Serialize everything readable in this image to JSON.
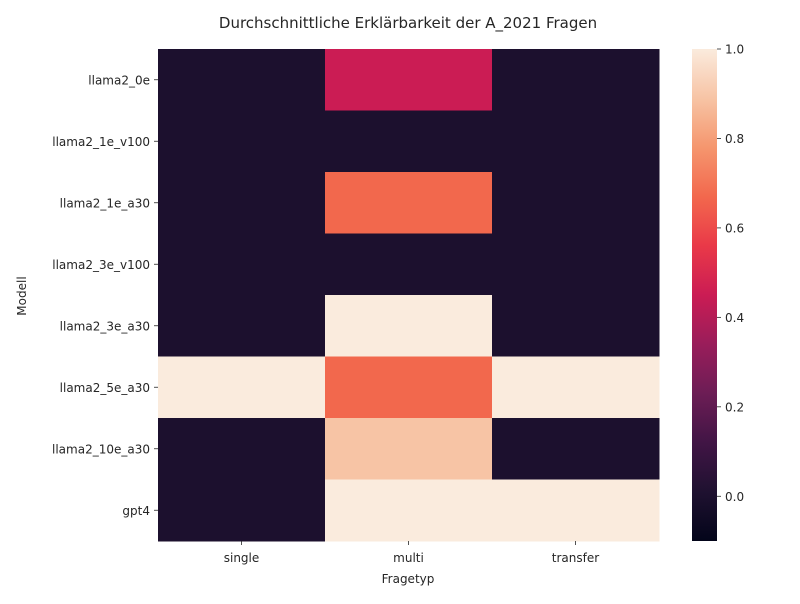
{
  "chart_data": {
    "type": "heatmap",
    "title": "Durchschnittliche Erklärbarkeit der A_2021 Fragen",
    "xlabel": "Fragetyp",
    "ylabel": "Modell",
    "x_categories": [
      "single",
      "multi",
      "transfer"
    ],
    "y_categories": [
      "llama2_0e",
      "llama2_1e_v100",
      "llama2_1e_a30",
      "llama2_3e_v100",
      "llama2_3e_a30",
      "llama2_5e_a30",
      "llama2_10e_a30",
      "gpt4"
    ],
    "values": [
      [
        0,
        0.45,
        0
      ],
      [
        0,
        0,
        0
      ],
      [
        0,
        0.67,
        0
      ],
      [
        0,
        0,
        0
      ],
      [
        0,
        1.0,
        0
      ],
      [
        1.0,
        0.67,
        1.0
      ],
      [
        0,
        0.89,
        0
      ],
      [
        0,
        1.0,
        1.0
      ]
    ],
    "colorbar": {
      "range": [
        -0.1,
        1.0
      ],
      "ticks": [
        -0.1,
        0.0,
        0.2,
        0.4,
        0.6,
        0.8,
        1.0
      ],
      "tick_labels": [
        "",
        "0.0",
        "0.2",
        "0.4",
        "0.6",
        "0.8",
        "1.0"
      ],
      "colormap": "rocket"
    },
    "grid": false
  }
}
